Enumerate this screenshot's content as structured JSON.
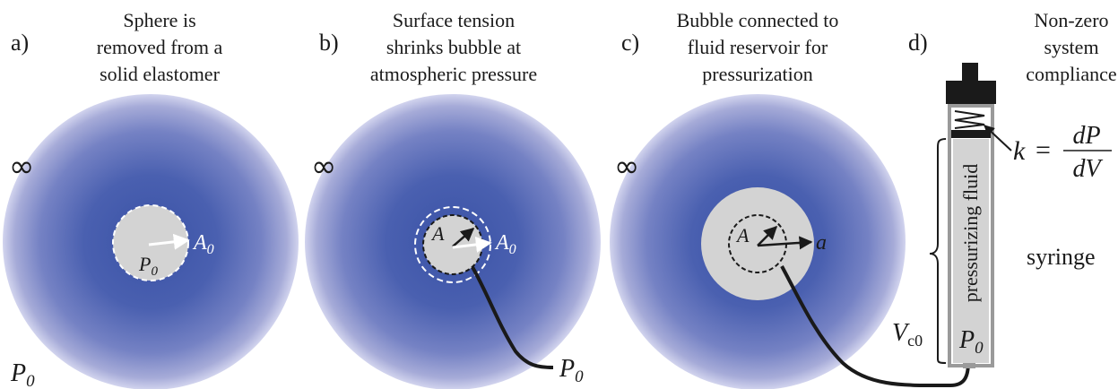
{
  "panels": [
    {
      "id": "a",
      "label": "a)",
      "caption": [
        "Sphere is",
        "removed from a",
        "solid elastomer"
      ]
    },
    {
      "id": "b",
      "label": "b)",
      "caption": [
        "Surface tension",
        "shrinks bubble at",
        "atmospheric pressure"
      ]
    },
    {
      "id": "c",
      "label": "c)",
      "caption": [
        "Bubble connected to",
        "fluid reservoir for",
        "pressurization"
      ]
    },
    {
      "id": "d",
      "label": "d)",
      "caption": [
        "Non-zero",
        "system",
        "compliance"
      ]
    }
  ],
  "symbols": {
    "infinity": "∞",
    "pressure": "P",
    "pressure_sub": "0",
    "radius_initial": "A",
    "radius_initial_sub": "0",
    "radius_ref": "A",
    "radius_current": "a",
    "volume": "V",
    "volume_sub": "c0",
    "stiffness_lhs": "k",
    "stiffness_eq": "=",
    "stiffness_num": "dP",
    "stiffness_den": "dV"
  },
  "syringe": {
    "fluid_label": "pressurizing fluid",
    "label": "syringe"
  },
  "colors": {
    "elastomer_center": "#3d55a8",
    "elastomer_edge": "#c9cbea",
    "bubble": "#d3d3d3",
    "ink": "#1a1a1a",
    "syringe_body": "#9a9a9a"
  }
}
